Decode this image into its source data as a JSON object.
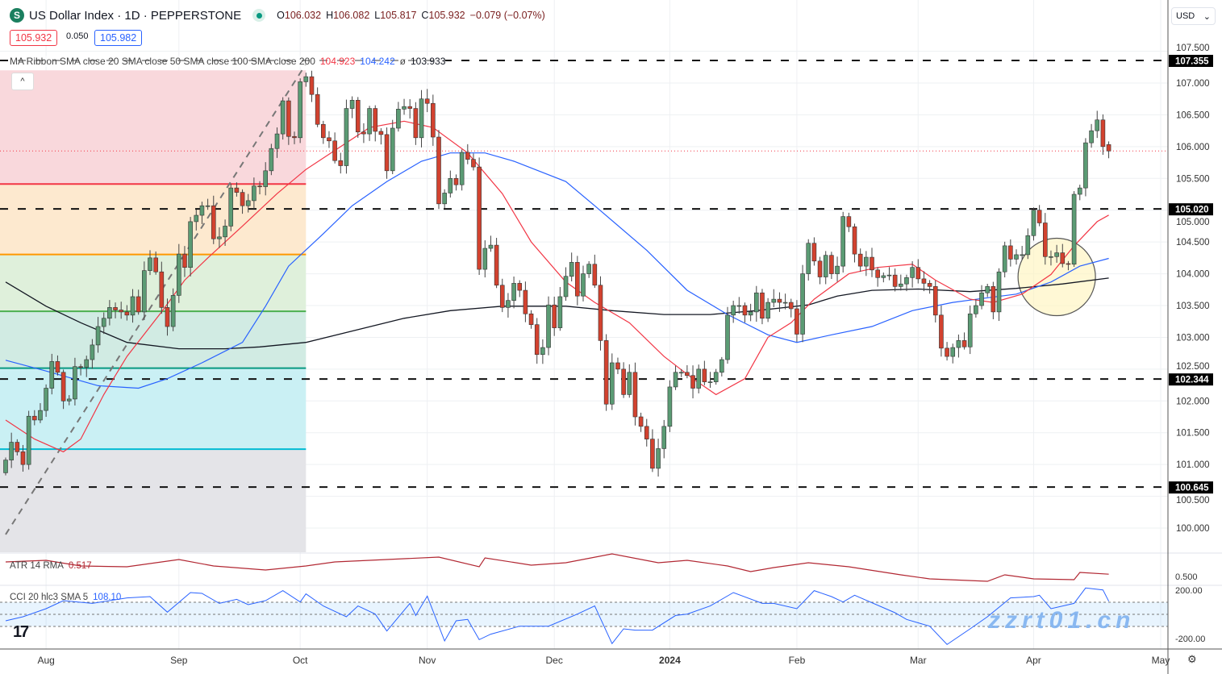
{
  "header": {
    "symbol_icon": "S",
    "title": "US Dollar Index · 1D · PEPPERSTONE",
    "open_label": "O",
    "open": "106.032",
    "high_label": "H",
    "high": "106.082",
    "low_label": "L",
    "low": "105.817",
    "close_label": "C",
    "close": "105.932",
    "change": "−0.079 (−0.07%)",
    "bid": "105.932",
    "spread": "0.050",
    "ask": "105.982"
  },
  "currency": "USD",
  "ma_legend": {
    "label": "MA Ribbon SMA close 20 SMA close 50 SMA close 100 SMA close 200",
    "v1": "104.923",
    "v2": "104.242",
    "v3": "ø",
    "v4": "103.933"
  },
  "atr_legend": {
    "label": "ATR 14 RMA",
    "value": "0.517"
  },
  "cci_legend": {
    "label": "CCI 20 hlc3 SMA 5",
    "value": "108.10"
  },
  "watermark": "zzrt01.cn",
  "colors": {
    "up": "#5b9b74",
    "down": "#d2422f",
    "ma20": "#f23645",
    "ma50": "#2962ff",
    "ma200": "#131722",
    "atr": "#b22833",
    "cci": "#2962ff"
  },
  "chart_data": {
    "type": "candlestick",
    "y_ticks": [
      "100.000",
      "100.500",
      "101.000",
      "101.500",
      "102.000",
      "102.500",
      "103.000",
      "103.500",
      "104.000",
      "104.500",
      "105.000",
      "105.500",
      "106.000",
      "106.500",
      "107.000",
      "107.500"
    ],
    "ylim": [
      99.5,
      107.6
    ],
    "x_ticks": [
      {
        "label": "Aug",
        "bar": 7
      },
      {
        "label": "Sep",
        "bar": 30
      },
      {
        "label": "Oct",
        "bar": 51
      },
      {
        "label": "Nov",
        "bar": 73
      },
      {
        "label": "Dec",
        "bar": 95
      },
      {
        "label": "2024",
        "bar": 115
      },
      {
        "label": "Feb",
        "bar": 137
      },
      {
        "label": "Mar",
        "bar": 158
      },
      {
        "label": "Apr",
        "bar": 178
      },
      {
        "label": "May",
        "bar": 200
      }
    ],
    "closes": [
      101.07,
      101.35,
      101.2,
      101.0,
      101.76,
      101.7,
      101.85,
      102.2,
      102.62,
      102.45,
      102.0,
      102.03,
      102.54,
      102.53,
      102.65,
      102.88,
      103.17,
      103.3,
      103.47,
      103.43,
      103.4,
      103.35,
      103.64,
      103.4,
      104.05,
      104.25,
      104.03,
      103.47,
      103.17,
      103.66,
      104.31,
      104.1,
      104.82,
      104.92,
      105.07,
      105.07,
      104.55,
      104.58,
      104.75,
      105.35,
      105.28,
      105.07,
      105.15,
      105.38,
      105.37,
      105.62,
      105.97,
      106.2,
      106.72,
      106.16,
      106.14,
      107.02,
      107.1,
      106.82,
      106.35,
      106.14,
      106.09,
      105.78,
      105.7,
      106.6,
      106.73,
      106.23,
      106.2,
      106.6,
      106.24,
      106.19,
      105.62,
      106.29,
      106.59,
      106.63,
      106.6,
      106.14,
      106.75,
      106.68,
      106.15,
      105.1,
      105.27,
      105.5,
      105.4,
      105.91,
      105.8,
      105.68,
      104.07,
      104.4,
      104.45,
      103.82,
      103.47,
      103.58,
      103.85,
      103.74,
      103.37,
      103.2,
      102.73,
      102.84,
      103.51,
      103.15,
      103.64,
      103.96,
      104.18,
      103.65,
      104.0,
      104.15,
      103.82,
      102.95,
      101.95,
      102.6,
      102.5,
      102.1,
      102.45,
      101.75,
      101.6,
      101.4,
      100.94,
      101.25,
      101.6,
      102.22,
      102.45,
      102.45,
      102.4,
      102.2,
      102.5,
      102.3,
      102.3,
      102.45,
      102.65,
      103.35,
      103.5,
      103.5,
      103.35,
      103.4,
      103.7,
      103.3,
      103.55,
      103.6,
      103.55,
      103.55,
      103.45,
      103.05,
      104.0,
      104.48,
      104.2,
      103.95,
      104.29,
      104.0,
      104.12,
      104.9,
      104.74,
      104.31,
      104.12,
      104.26,
      104.06,
      103.94,
      103.97,
      103.98,
      103.8,
      103.84,
      103.94,
      104.1,
      103.92,
      103.85,
      103.8,
      103.35,
      102.83,
      102.7,
      102.84,
      102.95,
      102.85,
      103.37,
      103.5,
      103.7,
      103.8,
      103.4,
      104.03,
      104.44,
      104.23,
      104.3,
      104.3,
      104.6,
      105.0,
      104.8,
      104.27,
      104.27,
      104.33,
      104.16,
      104.15,
      105.25,
      105.35,
      106.06,
      106.25,
      106.42,
      106.0,
      105.932
    ],
    "last_bar": {
      "open": 106.032,
      "high": 106.082,
      "low": 105.817,
      "close": 105.932
    },
    "current_price": 105.932,
    "sma20": [
      [
        0,
        101.7
      ],
      [
        5,
        101.4
      ],
      [
        10,
        101.2
      ],
      [
        13,
        101.4
      ],
      [
        17,
        102.1
      ],
      [
        21,
        102.7
      ],
      [
        27,
        103.4
      ],
      [
        31,
        103.9
      ],
      [
        35,
        104.25
      ],
      [
        41,
        104.75
      ],
      [
        47,
        105.26
      ],
      [
        52,
        105.64
      ],
      [
        58,
        106.0
      ],
      [
        63,
        106.3
      ],
      [
        69,
        106.4
      ],
      [
        74,
        106.3
      ],
      [
        80,
        105.9
      ],
      [
        86,
        105.26
      ],
      [
        91,
        104.5
      ],
      [
        97,
        103.87
      ],
      [
        102,
        103.55
      ],
      [
        108,
        103.23
      ],
      [
        114,
        102.7
      ],
      [
        119,
        102.35
      ],
      [
        123,
        102.1
      ],
      [
        128,
        102.35
      ],
      [
        132,
        103.0
      ],
      [
        136,
        103.23
      ],
      [
        140,
        103.6
      ],
      [
        146,
        104.0
      ],
      [
        151,
        104.1
      ],
      [
        157,
        104.15
      ],
      [
        161,
        103.9
      ],
      [
        167,
        103.6
      ],
      [
        171,
        103.55
      ],
      [
        176,
        103.68
      ],
      [
        181,
        103.99
      ],
      [
        185,
        104.44
      ],
      [
        189,
        104.82
      ],
      [
        191,
        104.923
      ]
    ],
    "sma50": [
      [
        0,
        102.64
      ],
      [
        7,
        102.47
      ],
      [
        16,
        102.24
      ],
      [
        23,
        102.2
      ],
      [
        28,
        102.35
      ],
      [
        34,
        102.6
      ],
      [
        41,
        102.92
      ],
      [
        45,
        103.49
      ],
      [
        49,
        104.12
      ],
      [
        55,
        104.63
      ],
      [
        60,
        105.07
      ],
      [
        66,
        105.45
      ],
      [
        72,
        105.77
      ],
      [
        77,
        105.9
      ],
      [
        83,
        105.9
      ],
      [
        88,
        105.77
      ],
      [
        97,
        105.45
      ],
      [
        102,
        105.07
      ],
      [
        111,
        104.37
      ],
      [
        118,
        103.74
      ],
      [
        125,
        103.36
      ],
      [
        132,
        103.04
      ],
      [
        137,
        102.92
      ],
      [
        143,
        103.04
      ],
      [
        150,
        103.17
      ],
      [
        157,
        103.42
      ],
      [
        164,
        103.55
      ],
      [
        169,
        103.61
      ],
      [
        175,
        103.68
      ],
      [
        181,
        103.87
      ],
      [
        186,
        104.12
      ],
      [
        191,
        104.242
      ]
    ],
    "sma200": [
      [
        0,
        103.87
      ],
      [
        7,
        103.49
      ],
      [
        13,
        103.23
      ],
      [
        21,
        102.92
      ],
      [
        30,
        102.82
      ],
      [
        38,
        102.82
      ],
      [
        44,
        102.85
      ],
      [
        52,
        102.92
      ],
      [
        60,
        103.1
      ],
      [
        69,
        103.3
      ],
      [
        77,
        103.42
      ],
      [
        86,
        103.49
      ],
      [
        97,
        103.49
      ],
      [
        105,
        103.42
      ],
      [
        114,
        103.36
      ],
      [
        122,
        103.36
      ],
      [
        130,
        103.42
      ],
      [
        139,
        103.51
      ],
      [
        144,
        103.65
      ],
      [
        150,
        103.74
      ],
      [
        158,
        103.76
      ],
      [
        167,
        103.72
      ],
      [
        175,
        103.77
      ],
      [
        183,
        103.84
      ],
      [
        191,
        103.933
      ]
    ],
    "horizontal_levels": [
      {
        "price": 107.355,
        "label": "107.355"
      },
      {
        "price": 105.02,
        "label": "105.020"
      },
      {
        "price": 102.344,
        "label": "102.344"
      },
      {
        "price": 100.645,
        "label": "100.645"
      }
    ],
    "fib_retracement": {
      "high": 107.2,
      "low": 99.62,
      "end_bar": 52,
      "levels": [
        0,
        0.236,
        0.382,
        0.5,
        0.618,
        0.786,
        1
      ],
      "zone_colors": [
        "#f9d8dc",
        "#fde9cf",
        "#dff0db",
        "#d1ebe3",
        "#caf0f4",
        "#e4e4e8"
      ],
      "line_colors": [
        "#f23645",
        "#ff9800",
        "#4caf50",
        "#089981",
        "#00bcd4"
      ]
    },
    "trendline": {
      "from": [
        0,
        99.9
      ],
      "to": [
        52,
        107.3
      ]
    },
    "highlight_circle": {
      "center_bar": 182,
      "center_price": 103.95
    },
    "atr": {
      "tick": "0.500",
      "points": [
        [
          0,
          0.608
        ],
        [
          7,
          0.62
        ],
        [
          13,
          0.578
        ],
        [
          21,
          0.572
        ],
        [
          30,
          0.626
        ],
        [
          36,
          0.578
        ],
        [
          45,
          0.548
        ],
        [
          52,
          0.578
        ],
        [
          57,
          0.608
        ],
        [
          75,
          0.644
        ],
        [
          82,
          0.572
        ],
        [
          83,
          0.638
        ],
        [
          91,
          0.584
        ],
        [
          97,
          0.602
        ],
        [
          105,
          0.668
        ],
        [
          113,
          0.602
        ],
        [
          118,
          0.62
        ],
        [
          125,
          0.578
        ],
        [
          129,
          0.536
        ],
        [
          133,
          0.566
        ],
        [
          139,
          0.602
        ],
        [
          146,
          0.572
        ],
        [
          155,
          0.512
        ],
        [
          160,
          0.482
        ],
        [
          170,
          0.464
        ],
        [
          173,
          0.512
        ],
        [
          178,
          0.482
        ],
        [
          185,
          0.476
        ],
        [
          186,
          0.53
        ],
        [
          191,
          0.517
        ]
      ]
    },
    "cci": {
      "ticks": [
        "200.00",
        "-200.00"
      ],
      "band": [
        -100,
        100
      ],
      "points": [
        [
          0,
          -53
        ],
        [
          3,
          -20
        ],
        [
          7,
          47
        ],
        [
          10,
          113
        ],
        [
          15,
          91
        ],
        [
          21,
          136
        ],
        [
          25,
          147
        ],
        [
          28,
          18
        ],
        [
          32,
          180
        ],
        [
          34,
          173
        ],
        [
          37,
          91
        ],
        [
          40,
          124
        ],
        [
          42,
          80
        ],
        [
          45,
          113
        ],
        [
          48,
          196
        ],
        [
          51,
          102
        ],
        [
          52,
          169
        ],
        [
          55,
          69
        ],
        [
          59,
          -20
        ],
        [
          61,
          69
        ],
        [
          64,
          2
        ],
        [
          66,
          -138
        ],
        [
          70,
          91
        ],
        [
          71,
          -9
        ],
        [
          73,
          151
        ],
        [
          76,
          -220
        ],
        [
          78,
          -53
        ],
        [
          80,
          -42
        ],
        [
          82,
          -209
        ],
        [
          84,
          -164
        ],
        [
          89,
          -98
        ],
        [
          94,
          -98
        ],
        [
          99,
          2
        ],
        [
          102,
          69
        ],
        [
          105,
          -242
        ],
        [
          107,
          -120
        ],
        [
          109,
          -131
        ],
        [
          112,
          -131
        ],
        [
          116,
          -9
        ],
        [
          118,
          2
        ],
        [
          122,
          69
        ],
        [
          126,
          180
        ],
        [
          131,
          91
        ],
        [
          133,
          91
        ],
        [
          137,
          47
        ],
        [
          140,
          196
        ],
        [
          143,
          147
        ],
        [
          145,
          102
        ],
        [
          147,
          158
        ],
        [
          154,
          13
        ],
        [
          156,
          -42
        ],
        [
          160,
          -98
        ],
        [
          163,
          -249
        ],
        [
          167,
          -120
        ],
        [
          170,
          -20
        ],
        [
          174,
          136
        ],
        [
          178,
          147
        ],
        [
          179,
          158
        ],
        [
          181,
          47
        ],
        [
          185,
          91
        ],
        [
          187,
          218
        ],
        [
          190,
          202
        ],
        [
          191,
          108.1
        ]
      ]
    }
  }
}
